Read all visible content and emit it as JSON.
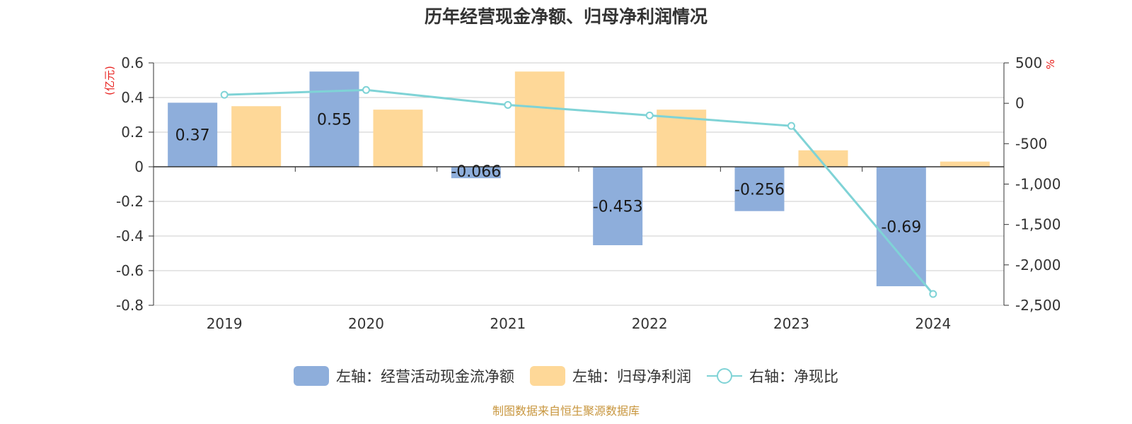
{
  "title": "历年经营现金净额、归母净利润情况",
  "source_note": "制图数据来自恒生聚源数据库",
  "colors": {
    "cash_flow": "#8eaedb",
    "net_profit": "#fed898",
    "ratio_line": "#7fd3d6",
    "left_unit": "#e8221f"
  },
  "chart_data": {
    "type": "bar",
    "title": "历年经营现金净额、归母净利润情况",
    "categories": [
      "2019",
      "2020",
      "2021",
      "2022",
      "2023",
      "2024"
    ],
    "left_axis": {
      "unit": "(亿元)",
      "ylim": [
        -0.8,
        0.6
      ],
      "ticks": [
        0.6,
        0.4,
        0.2,
        0,
        -0.2,
        -0.4,
        -0.6,
        -0.8
      ],
      "tick_labels": [
        "0.6",
        "0.4",
        "0.2",
        "0",
        "-0.2",
        "-0.4",
        "-0.6",
        "-0.8"
      ]
    },
    "right_axis": {
      "unit": "%",
      "ylim": [
        -2500,
        500
      ],
      "ticks": [
        500,
        0,
        -500,
        -1000,
        -1500,
        -2000,
        -2500
      ],
      "tick_labels": [
        "500",
        "0",
        "-500",
        "-1,000",
        "-1,500",
        "-2,000",
        "-2,500"
      ]
    },
    "series": [
      {
        "name": "左轴：经营活动现金流净额",
        "axis": "left",
        "kind": "bar",
        "values": [
          0.37,
          0.55,
          -0.066,
          -0.453,
          -0.256,
          -0.69
        ],
        "labels": [
          "0.37",
          "0.55",
          "-0.066",
          "-0.453",
          "-0.256",
          "-0.69"
        ]
      },
      {
        "name": "左轴：归母净利润",
        "axis": "left",
        "kind": "bar",
        "values": [
          0.35,
          0.33,
          0.55,
          0.33,
          0.095,
          0.03
        ]
      },
      {
        "name": "右轴：净现比",
        "axis": "right",
        "kind": "line",
        "values": [
          105,
          165,
          -20,
          -150,
          -280,
          -2360
        ]
      }
    ],
    "grid": true,
    "legend_position": "bottom"
  }
}
